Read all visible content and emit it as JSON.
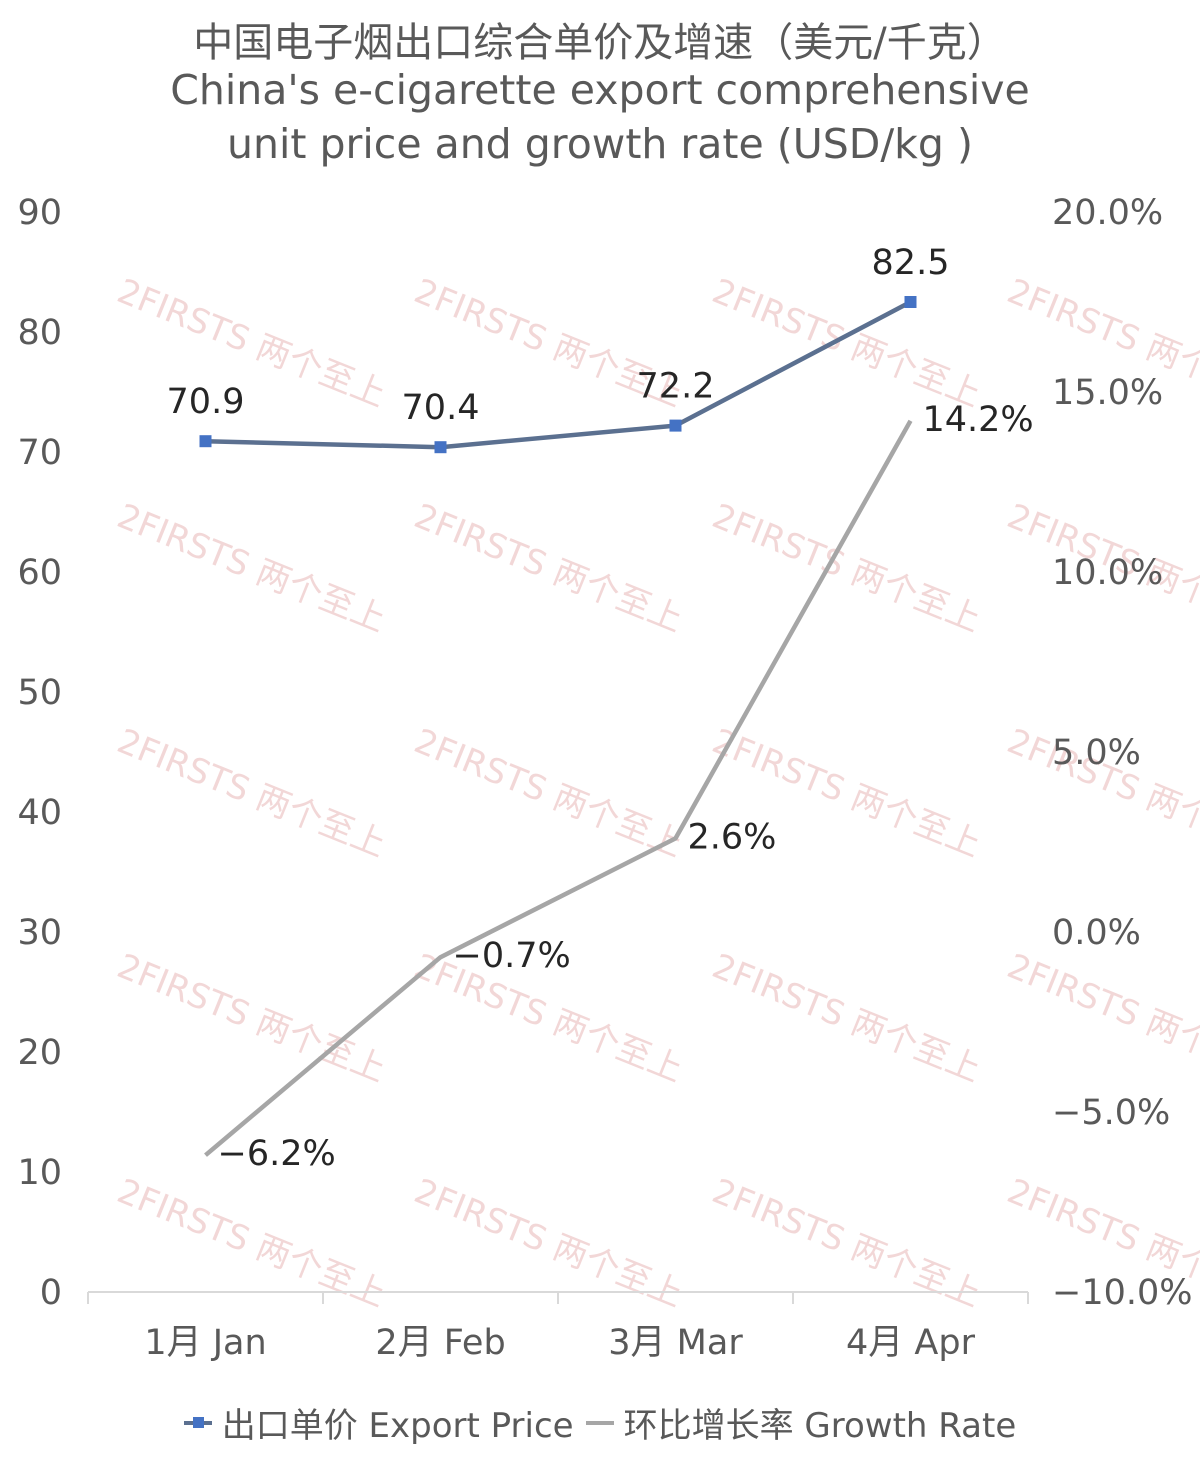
{
  "chart_data": {
    "type": "line",
    "title": "中国电子烟出口综合单价及增速（美元/千克）",
    "subtitle_line1": "China's e-cigarette export comprehensive",
    "subtitle_line2": "unit price and growth rate (USD/kg )",
    "categories": [
      "1月 Jan",
      "2月 Feb",
      "3月 Mar",
      "4月 Apr"
    ],
    "series": [
      {
        "name": "出口单价 Export Price",
        "axis": "left",
        "values": [
          70.9,
          70.4,
          72.2,
          82.5
        ],
        "labels": [
          "70.9",
          "70.4",
          "72.2",
          "82.5"
        ],
        "color": "#5b7090",
        "marker_color": "#4472c4",
        "marker": "square"
      },
      {
        "name": "环比增长率 Growth Rate",
        "axis": "right",
        "values": [
          -6.2,
          -0.7,
          2.6,
          14.2
        ],
        "labels": [
          "−6.2%",
          "−0.7%",
          "2.6%",
          "14.2%"
        ],
        "color": "#a6a6a6",
        "marker": "none"
      }
    ],
    "y_left": {
      "range": [
        0,
        90
      ],
      "ticks": [
        "0",
        "10",
        "20",
        "30",
        "40",
        "50",
        "60",
        "70",
        "80",
        "90"
      ]
    },
    "y_right": {
      "range": [
        -10,
        20
      ],
      "ticks": [
        "−10.0%",
        "−5.0%",
        "0.0%",
        "5.0%",
        "10.0%",
        "15.0%",
        "20.0%"
      ]
    },
    "grid": false,
    "legend_position": "bottom",
    "watermark": "2FIRSTS 两个至上"
  }
}
